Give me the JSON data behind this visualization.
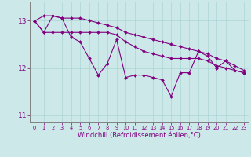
{
  "xlabel": "Windchill (Refroidissement éolien,°C)",
  "background_color": "#cce8e8",
  "line_color": "#800080",
  "x_values": [
    0,
    1,
    2,
    3,
    4,
    5,
    6,
    7,
    8,
    9,
    10,
    11,
    12,
    13,
    14,
    15,
    16,
    17,
    18,
    19,
    20,
    21,
    22,
    23
  ],
  "y_main": [
    12.99,
    12.75,
    13.1,
    13.05,
    12.65,
    12.55,
    12.2,
    11.85,
    12.1,
    12.6,
    11.8,
    11.85,
    11.85,
    11.8,
    11.75,
    11.4,
    11.9,
    11.9,
    12.35,
    12.25,
    12.0,
    12.15,
    11.95,
    11.9
  ],
  "y_upper": [
    12.99,
    13.1,
    13.1,
    13.05,
    13.05,
    13.05,
    13.0,
    12.95,
    12.9,
    12.85,
    12.75,
    12.7,
    12.65,
    12.6,
    12.55,
    12.5,
    12.45,
    12.4,
    12.35,
    12.3,
    12.2,
    12.15,
    12.05,
    11.95
  ],
  "y_lower": [
    12.99,
    12.75,
    12.75,
    12.75,
    12.75,
    12.75,
    12.75,
    12.75,
    12.75,
    12.7,
    12.55,
    12.45,
    12.35,
    12.3,
    12.25,
    12.2,
    12.2,
    12.2,
    12.2,
    12.15,
    12.05,
    12.0,
    11.95,
    11.9
  ],
  "ylim": [
    10.85,
    13.4
  ],
  "yticks": [
    11,
    12,
    13
  ],
  "grid_color": "#aad4d4",
  "marker": "D",
  "marker_size": 2,
  "line_width": 0.8,
  "spine_color": "#808080",
  "xlabel_fontsize": 6.0,
  "xtick_fontsize": 4.8,
  "ytick_fontsize": 6.5
}
